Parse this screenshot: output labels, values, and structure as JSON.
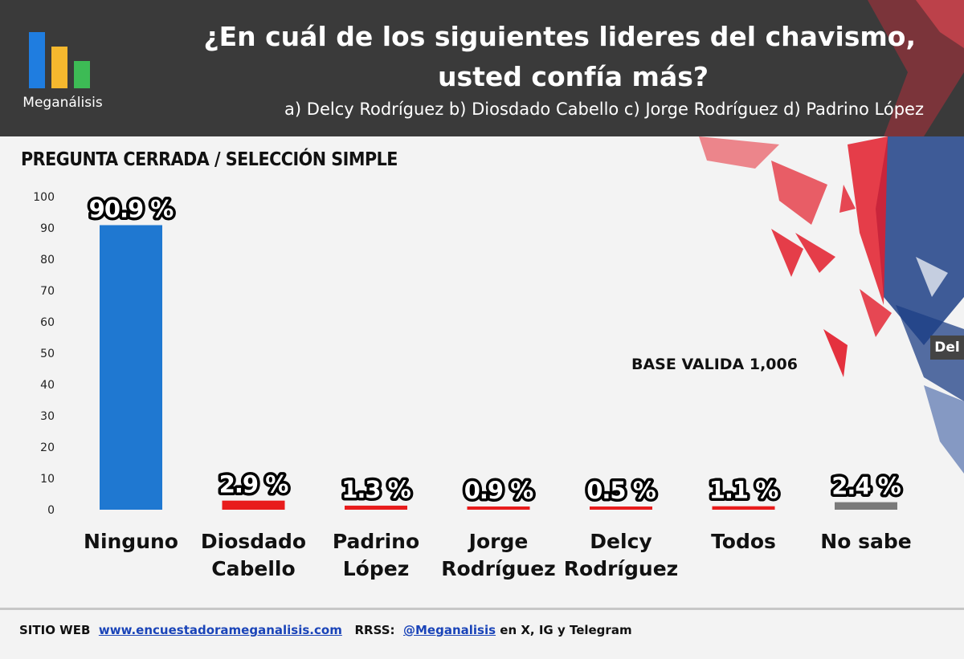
{
  "header": {
    "logo_text": "Meganálisis",
    "title_line1": "¿En cuál de los siguientes lideres del chavismo,",
    "title_line2": "usted confía más?",
    "options": "a) Delcy Rodríguez  b) Diosdado Cabello c) Jorge Rodríguez d) Padrino López"
  },
  "question_type": "PREGUNTA CERRADA / SELECCIÓN SIMPLE",
  "base_note": "BASE VALIDA 1,006",
  "watermark": "Del",
  "footer": {
    "site_label": "SITIO WEB",
    "site_url": "www.encuestadorameganalisis.com",
    "rrss_label": "RRSS:",
    "handle": "@Meganalisis",
    "networks": "en X, IG y Telegram"
  },
  "colors": {
    "header_bg": "#3a3a3a",
    "blue": "#1f78d1",
    "red": "#e81c1c",
    "gray": "#7a7a7a",
    "logo_blue": "#1f7de0",
    "logo_yellow": "#f5b82e",
    "logo_green": "#3dbb55"
  },
  "chart_data": {
    "type": "bar",
    "categories": [
      "Ninguno",
      "Diosdado Cabello",
      "Padrino López",
      "Jorge Rodríguez",
      "Delcy Rodríguez",
      "Todos",
      "No sabe"
    ],
    "category_lines": [
      [
        "Ninguno"
      ],
      [
        "Diosdado",
        "Cabello"
      ],
      [
        "Padrino",
        "López"
      ],
      [
        "Jorge",
        "Rodríguez"
      ],
      [
        "Delcy",
        "Rodríguez"
      ],
      [
        "Todos"
      ],
      [
        "No sabe"
      ]
    ],
    "values": [
      90.9,
      2.9,
      1.3,
      0.9,
      0.5,
      1.1,
      2.4
    ],
    "value_labels": [
      "90.9 %",
      "2.9 %",
      "1.3 %",
      "0.9 %",
      "0.5 %",
      "1.1 %",
      "2.4 %"
    ],
    "bar_colors": [
      "#1f78d1",
      "#e81c1c",
      "#e81c1c",
      "#e81c1c",
      "#e81c1c",
      "#e81c1c",
      "#7a7a7a"
    ],
    "yticks": [
      0,
      10,
      20,
      30,
      40,
      50,
      60,
      70,
      80,
      90,
      100
    ],
    "ylim": [
      0,
      100
    ],
    "grid": false,
    "title": "¿En cuál de los siguientes lideres del chavismo, usted confía más?",
    "xlabel": "",
    "ylabel": ""
  }
}
